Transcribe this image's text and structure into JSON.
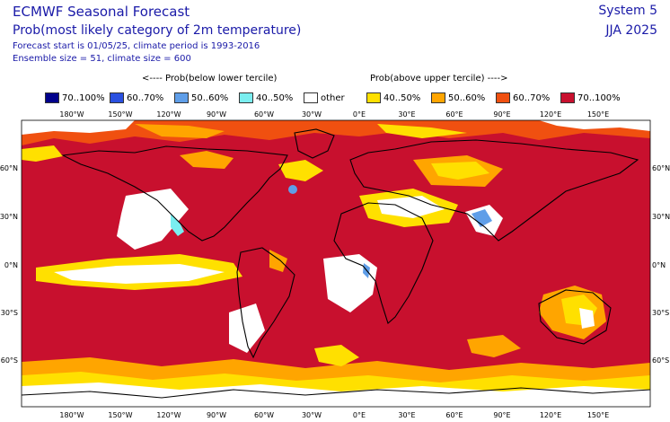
{
  "header": {
    "title": "ECMWF Seasonal Forecast",
    "subtitle": "Prob(most likely category of 2m temperature)",
    "forecast_info": "Forecast start is 01/05/25, climate period is 1993-2016",
    "ensemble_info": "Ensemble size = 51, climate size = 600",
    "system": "System 5",
    "season": "JJA 2025"
  },
  "legend": {
    "below_label": "<---- Prob(below lower tercile)",
    "above_label": "Prob(above upper tercile) ---->",
    "items": [
      {
        "label": "70..100%",
        "color": "#00008b"
      },
      {
        "label": "60..70%",
        "color": "#2a50e0"
      },
      {
        "label": "50..60%",
        "color": "#5f9ee8"
      },
      {
        "label": "40..50%",
        "color": "#7aeef0"
      },
      {
        "label": "other",
        "color": "#ffffff"
      },
      {
        "label": "40..50%",
        "color": "#ffe000"
      },
      {
        "label": "50..60%",
        "color": "#ffa500"
      },
      {
        "label": "60..70%",
        "color": "#f05010"
      },
      {
        "label": "70..100%",
        "color": "#c8102e"
      }
    ]
  },
  "axes": {
    "lon_ticks": [
      "180°W",
      "150°W",
      "120°W",
      "90°W",
      "60°W",
      "30°W",
      "0°E",
      "30°E",
      "60°E",
      "90°E",
      "120°E",
      "150°E"
    ],
    "lat_ticks": [
      "60°N",
      "30°N",
      "0°N",
      "30°S",
      "60°S"
    ]
  }
}
